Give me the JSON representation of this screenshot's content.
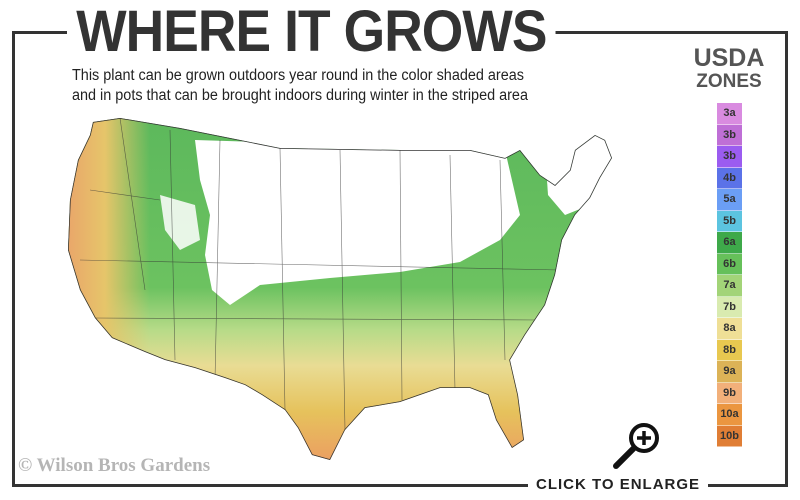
{
  "header": {
    "title": "WHERE IT GROWS",
    "subtitle_line1": "This plant can be grown outdoors year round in the color shaded areas",
    "subtitle_line2": "and in pots that can be brought indoors during winter in the striped area"
  },
  "legend": {
    "title_line1": "USDA",
    "title_line2": "ZONES",
    "zones": [
      {
        "label": "3a",
        "color": "#d98be0"
      },
      {
        "label": "3b",
        "color": "#bf6fd6"
      },
      {
        "label": "3b",
        "color": "#9b5cf0"
      },
      {
        "label": "4b",
        "color": "#5b72e8"
      },
      {
        "label": "5a",
        "color": "#6b9ef5"
      },
      {
        "label": "5b",
        "color": "#5cc4e0"
      },
      {
        "label": "6a",
        "color": "#3ea94a"
      },
      {
        "label": "6b",
        "color": "#66c05a"
      },
      {
        "label": "7a",
        "color": "#a3d478"
      },
      {
        "label": "7b",
        "color": "#d9ebb0"
      },
      {
        "label": "8a",
        "color": "#efdf96"
      },
      {
        "label": "8b",
        "color": "#e8c850"
      },
      {
        "label": "9a",
        "color": "#dcb357"
      },
      {
        "label": "9b",
        "color": "#f2b07a"
      },
      {
        "label": "10a",
        "color": "#eb9640"
      },
      {
        "label": "10b",
        "color": "#e07e35"
      }
    ]
  },
  "footer": {
    "copyright": "© Wilson Bros Gardens",
    "enlarge_label": "CLICK TO ENLARGE"
  },
  "icons": {
    "magnifier": "zoom-in-icon"
  }
}
